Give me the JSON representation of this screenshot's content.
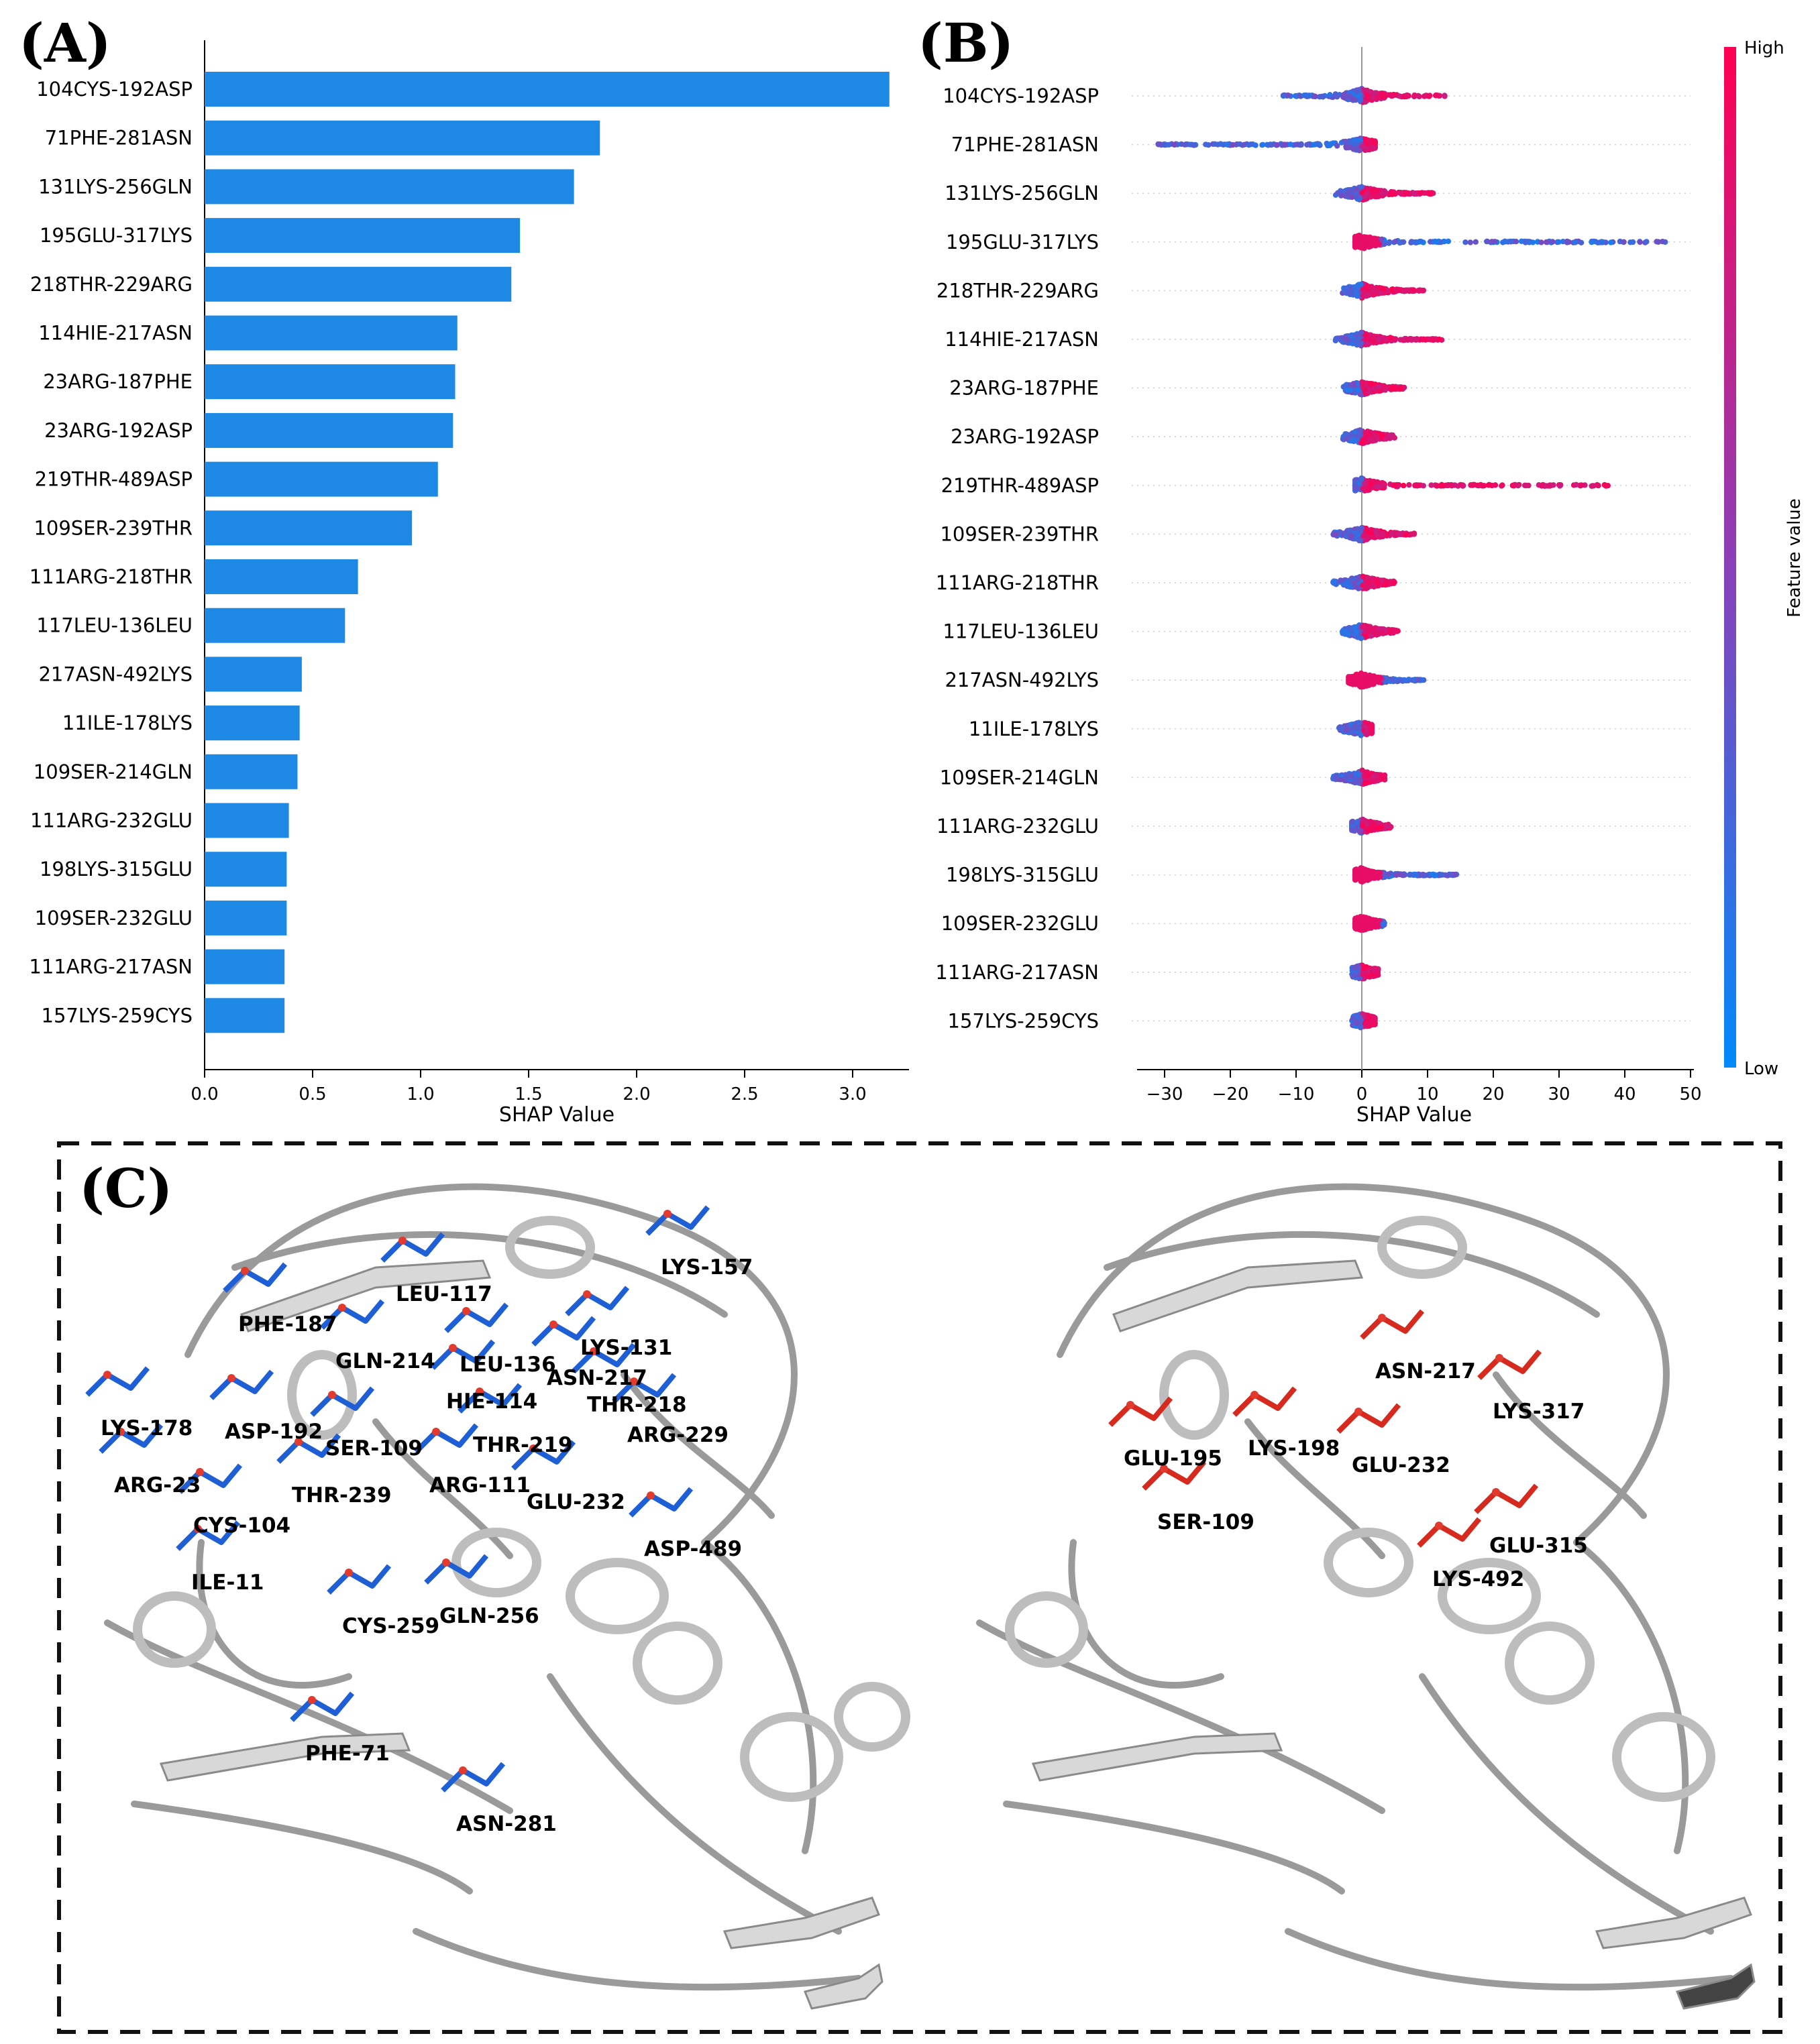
{
  "panels": {
    "a": "(A)",
    "b": "(B)",
    "c": "(C)"
  },
  "colors": {
    "bar": "#1e88e5",
    "low": "#008afb",
    "high": "#ff0052",
    "mid": "#8c3fb7",
    "blue_res": "#1f5fd6",
    "red_res": "#d62a1e"
  },
  "chart_data": [
    {
      "type": "bar",
      "orientation": "horizontal",
      "panel": "A",
      "categories": [
        "104CYS-192ASP",
        "71PHE-281ASN",
        "131LYS-256GLN",
        "195GLU-317LYS",
        "218THR-229ARG",
        "114HIE-217ASN",
        "23ARG-187PHE",
        "23ARG-192ASP",
        "219THR-489ASP",
        "109SER-239THR",
        "111ARG-218THR",
        "117LEU-136LEU",
        "217ASN-492LYS",
        "11ILE-178LYS",
        "109SER-214GLN",
        "111ARG-232GLU",
        "198LYS-315GLU",
        "109SER-232GLU",
        "111ARG-217ASN",
        "157LYS-259CYS"
      ],
      "values": [
        3.17,
        1.83,
        1.71,
        1.46,
        1.42,
        1.17,
        1.16,
        1.15,
        1.08,
        0.96,
        0.71,
        0.65,
        0.45,
        0.44,
        0.43,
        0.39,
        0.38,
        0.38,
        0.37,
        0.37
      ],
      "xlabel": "SHAP Value",
      "xlim": [
        0,
        3.25
      ],
      "xticks": [
        "0.0",
        "0.5",
        "1.0",
        "1.5",
        "2.0",
        "2.5",
        "3.0"
      ],
      "grid": false
    },
    {
      "type": "scatter",
      "subtype": "beeswarm",
      "panel": "B",
      "categories": [
        "104CYS-192ASP",
        "71PHE-281ASN",
        "131LYS-256GLN",
        "195GLU-317LYS",
        "218THR-229ARG",
        "114HIE-217ASN",
        "23ARG-187PHE",
        "23ARG-192ASP",
        "219THR-489ASP",
        "109SER-239THR",
        "111ARG-218THR",
        "117LEU-136LEU",
        "217ASN-492LYS",
        "11ILE-178LYS",
        "109SER-214GLN",
        "111ARG-232GLU",
        "198LYS-315GLU",
        "109SER-232GLU",
        "111ARG-217ASN",
        "157LYS-259CYS"
      ],
      "ranges": [
        {
          "min": -12,
          "max": 13,
          "low_side": "negative"
        },
        {
          "min": -31,
          "max": 2,
          "low_side": "negative"
        },
        {
          "min": -4,
          "max": 11,
          "low_side": "negative"
        },
        {
          "min": -1,
          "max": 46.5,
          "low_side": "positive"
        },
        {
          "min": -3,
          "max": 9.5,
          "low_side": "negative"
        },
        {
          "min": -4,
          "max": 12.5,
          "low_side": "negative"
        },
        {
          "min": -3,
          "max": 6.5,
          "low_side": "negative"
        },
        {
          "min": -3,
          "max": 5,
          "low_side": "negative"
        },
        {
          "min": -1,
          "max": 37.5,
          "low_side": "negative"
        },
        {
          "min": -4.5,
          "max": 8,
          "low_side": "negative"
        },
        {
          "min": -4.5,
          "max": 5,
          "low_side": "negative"
        },
        {
          "min": -3,
          "max": 5.5,
          "low_side": "negative"
        },
        {
          "min": -2,
          "max": 9.5,
          "low_side": "positive"
        },
        {
          "min": -3.5,
          "max": 1.5,
          "low_side": "negative"
        },
        {
          "min": -4.5,
          "max": 3.5,
          "low_side": "negative"
        },
        {
          "min": -1.5,
          "max": 4.5,
          "low_side": "negative"
        },
        {
          "min": -1,
          "max": 14.5,
          "low_side": "positive"
        },
        {
          "min": -1,
          "max": 3.5,
          "low_side": "positive"
        },
        {
          "min": -1.5,
          "max": 2.5,
          "low_side": "negative"
        },
        {
          "min": -1.5,
          "max": 2,
          "low_side": "negative"
        }
      ],
      "xlabel": "SHAP Value",
      "xlim": [
        -35,
        50
      ],
      "xticks": [
        "−30",
        "−20",
        "−10",
        "0",
        "10",
        "20",
        "30",
        "40",
        "50"
      ],
      "colorbar": {
        "label": "Feature value",
        "high": "High",
        "low": "Low"
      }
    }
  ],
  "structure_panel": {
    "left_labels": [
      "LYS-157",
      "LEU-117",
      "PHE-187",
      "LYS-131",
      "GLN-214",
      "LEU-136",
      "ASN-217",
      "HIE-114",
      "THR-218",
      "LYS-178",
      "ASP-192",
      "SER-109",
      "THR-219",
      "ARG-229",
      "ARG-111",
      "THR-239",
      "GLU-232",
      "ARG-23",
      "CYS-104",
      "ASP-489",
      "ILE-11",
      "CYS-259",
      "GLN-256",
      "PHE-71",
      "ASN-281"
    ],
    "right_labels": [
      "ASN-217",
      "LYS-317",
      "LYS-198",
      "GLU-195",
      "GLU-232",
      "SER-109",
      "GLU-315",
      "LYS-492"
    ]
  }
}
